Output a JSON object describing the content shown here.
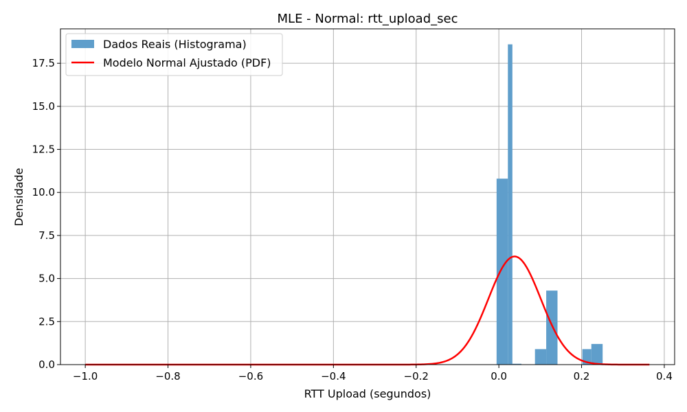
{
  "chart_data": {
    "type": "bar",
    "title": "MLE - Normal: rtt_upload_sec",
    "xlabel": "RTT Upload (segundos)",
    "ylabel": "Densidade",
    "xlim": [
      -1.06,
      0.425
    ],
    "ylim": [
      0,
      19.5
    ],
    "xticks": [
      -1.0,
      -0.8,
      -0.6,
      -0.4,
      -0.2,
      0.0,
      0.2,
      0.4
    ],
    "xtick_labels": [
      "−1.0",
      "−0.8",
      "−0.6",
      "−0.4",
      "−0.2",
      "0.0",
      "0.2",
      "0.4"
    ],
    "yticks": [
      0,
      2.5,
      5,
      7.5,
      10,
      12.5,
      15,
      17.5
    ],
    "ytick_labels": [
      "0.0",
      "2.5",
      "5.0",
      "7.5",
      "10.0",
      "12.5",
      "15.0",
      "17.5"
    ],
    "grid": true,
    "legend_position": "top-left",
    "series": [
      {
        "name": "Dados Reais (Histograma)",
        "kind": "histogram",
        "color": "#5f9ecb",
        "bins": [
          {
            "x0": -0.0055,
            "x1": 0.0218,
            "y": 10.8
          },
          {
            "x0": 0.0218,
            "x1": 0.0327,
            "y": 18.6
          },
          {
            "x0": 0.0327,
            "x1": 0.0436,
            "y": 0.05
          },
          {
            "x0": 0.0436,
            "x1": 0.0545,
            "y": 0.05
          },
          {
            "x0": 0.0873,
            "x1": 0.1145,
            "y": 0.9
          },
          {
            "x0": 0.1145,
            "x1": 0.1418,
            "y": 4.3
          },
          {
            "x0": 0.2018,
            "x1": 0.2236,
            "y": 0.9
          },
          {
            "x0": 0.2236,
            "x1": 0.2509,
            "y": 1.2
          }
        ]
      },
      {
        "name": "Modelo Normal Ajustado (PDF)",
        "kind": "line",
        "color": "#ff0000",
        "distribution": "normal",
        "mean": 0.038,
        "std": 0.0635,
        "x_range": [
          -1.0,
          0.364
        ],
        "points": 400
      }
    ]
  }
}
